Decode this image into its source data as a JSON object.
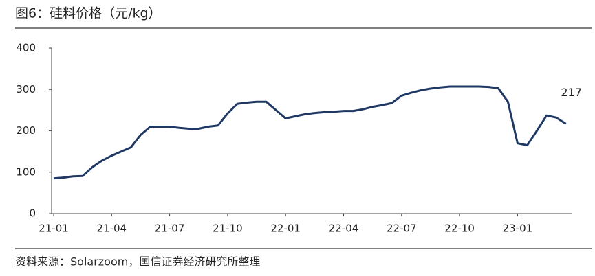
{
  "chart_data": {
    "type": "line",
    "title": "图6：硅料价格（元/kg）",
    "source": "资料来源：Solarzoom，国信证券经济研究所整理",
    "categories": [
      "21-01",
      null,
      null,
      null,
      null,
      null,
      "21-04",
      null,
      null,
      null,
      null,
      null,
      "21-07",
      null,
      null,
      null,
      null,
      null,
      "21-10",
      null,
      null,
      null,
      null,
      null,
      "22-01",
      null,
      null,
      null,
      null,
      null,
      "22-04",
      null,
      null,
      null,
      null,
      null,
      "22-07",
      null,
      null,
      null,
      null,
      null,
      "22-10",
      null,
      null,
      null,
      null,
      null,
      "23-01",
      null,
      null,
      null,
      null,
      null
    ],
    "series": [
      {
        "name": "硅料价格",
        "color": "#1f3864",
        "values": [
          85,
          87,
          90,
          91,
          112,
          128,
          140,
          150,
          160,
          190,
          210,
          210,
          210,
          207,
          205,
          205,
          210,
          213,
          242,
          265,
          268,
          270,
          270,
          250,
          230,
          235,
          240,
          243,
          245,
          246,
          248,
          248,
          252,
          258,
          262,
          267,
          285,
          292,
          298,
          302,
          305,
          307,
          307,
          307,
          307,
          306,
          303,
          270,
          170,
          165,
          200,
          237,
          232,
          217
        ]
      }
    ],
    "ylim": [
      0,
      400
    ],
    "yticks": [
      0,
      100,
      200,
      300,
      400
    ],
    "grid": false
  }
}
